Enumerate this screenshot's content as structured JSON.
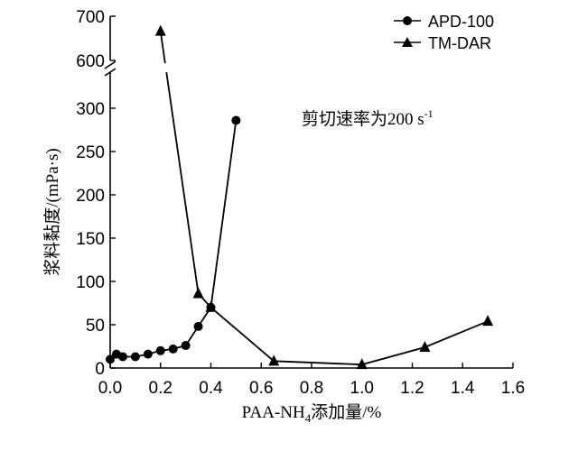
{
  "chart_data": {
    "type": "line",
    "xlabel_main": "PAA-NH",
    "xlabel_sub": "4",
    "xlabel_rest": "添加量/%",
    "ylabel": "浆料黏度/(mPa·s)",
    "annotation_main": "剪切速率为200 s",
    "annotation_sup": "-1",
    "xlim": [
      0,
      1.6
    ],
    "x_ticks": [
      "0.0",
      "0.2",
      "0.4",
      "0.6",
      "0.8",
      "1.0",
      "1.2",
      "1.4",
      "1.6"
    ],
    "y_ticks_lower": [
      "0",
      "50",
      "100",
      "150",
      "200",
      "250",
      "300"
    ],
    "y_ticks_upper": [
      "600",
      "700"
    ],
    "y_axis_break": [
      320,
      580
    ],
    "legend_position": "top-right",
    "series": [
      {
        "name": "APD-100",
        "marker": "circle",
        "x": [
          0.0,
          0.025,
          0.05,
          0.1,
          0.15,
          0.2,
          0.25,
          0.3,
          0.35,
          0.4,
          0.5
        ],
        "y": [
          10,
          16,
          13,
          13,
          16,
          20,
          22,
          26,
          48,
          70,
          286
        ]
      },
      {
        "name": "TM-DAR",
        "marker": "triangle",
        "x": [
          0.2,
          0.35,
          0.4,
          0.65,
          1.0,
          1.25,
          1.5
        ],
        "y": [
          666,
          86,
          70,
          8,
          4,
          24,
          54
        ]
      }
    ]
  }
}
